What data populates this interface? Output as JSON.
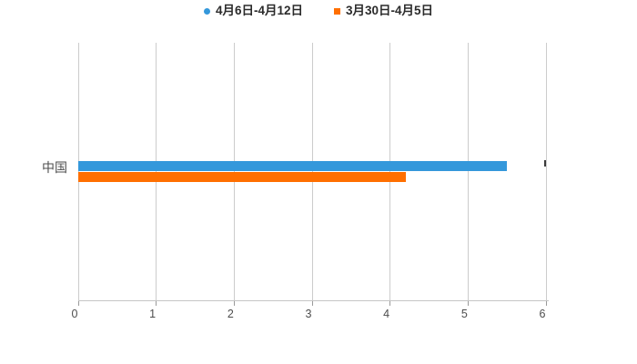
{
  "chart_data": {
    "type": "bar",
    "orientation": "horizontal",
    "title": "",
    "categories": [
      "中国"
    ],
    "series": [
      {
        "name": "4月6日-4月12日",
        "color": "#3498db",
        "marker": "circle",
        "values": [
          5.5
        ]
      },
      {
        "name": "3月30日-4月5日",
        "color": "#ff6f00",
        "marker": "square",
        "values": [
          4.2
        ]
      }
    ],
    "xlabel": "",
    "ylabel": "",
    "xlim": [
      0,
      6
    ],
    "x_ticks": [
      "0",
      "1",
      "2",
      "3",
      "4",
      "5",
      "6"
    ],
    "grid": true,
    "legend_position": "top",
    "background_color": "#ffffff",
    "gridline_color": "#cccccc",
    "axis_text_color": "#4d4d4d"
  }
}
